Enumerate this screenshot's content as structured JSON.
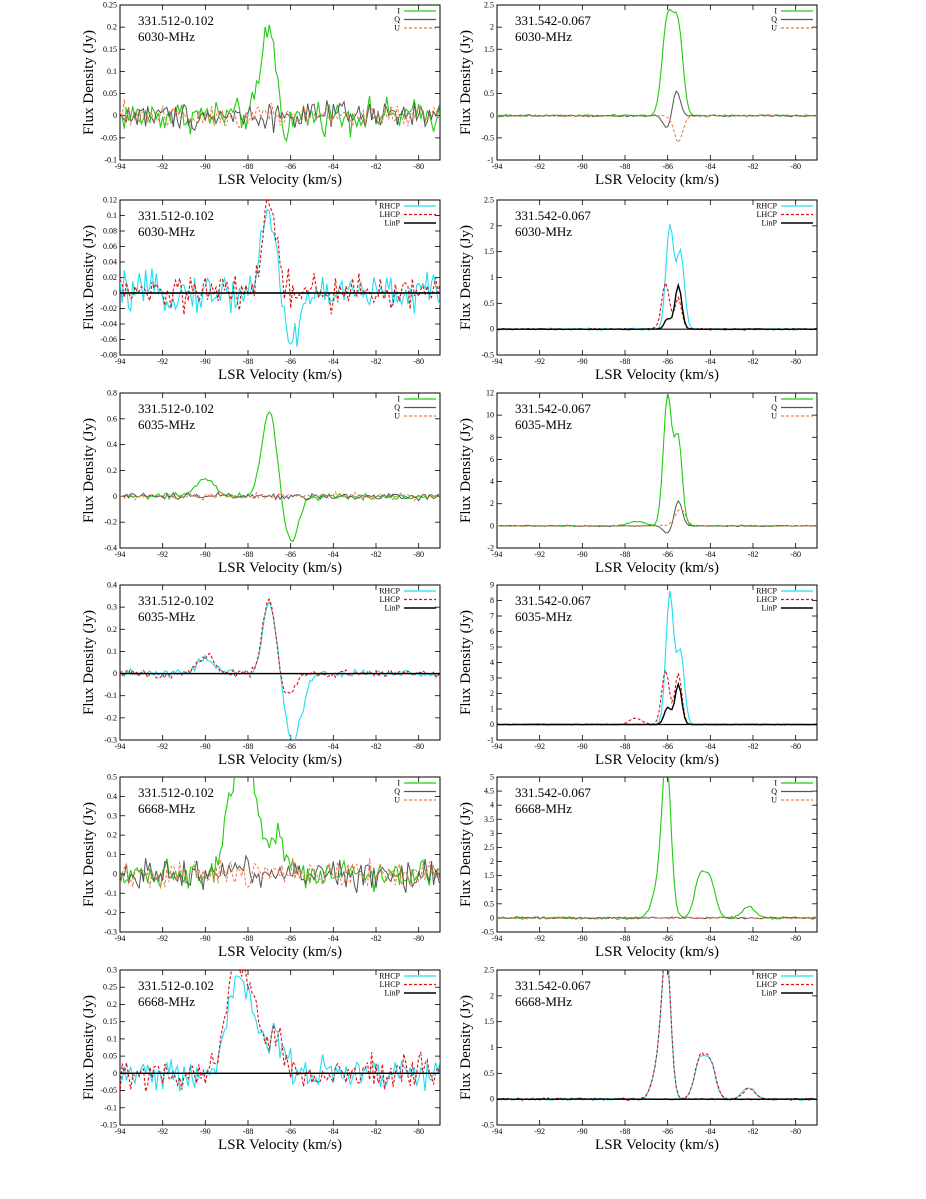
{
  "figure": {
    "xlabel": "LSR Velocity (km/s)",
    "ylabel": "Flux Density (Jy)"
  },
  "colors": {
    "I": "#22cc11",
    "Q": "#555555",
    "U": "#f07850",
    "RHCP": "#22ddee",
    "LHCP": "#dd1111",
    "LinP": "#000000"
  },
  "chart_data": [
    {
      "type": "line",
      "row": 0,
      "col": 0,
      "source": "331.512-0.102",
      "freq": "6030-MHz",
      "legend": [
        "I",
        "Q",
        "U"
      ],
      "xlim": [
        -94,
        -79
      ],
      "xticks": [
        -94,
        -92,
        -90,
        -88,
        -86,
        -84,
        -82,
        -80
      ],
      "ylim": [
        -0.1,
        0.25
      ],
      "yticks": [
        -0.1,
        -0.05,
        0,
        0.05,
        0.1,
        0.15,
        0.2,
        0.25
      ],
      "xlabel": "LSR Velocity (km/s)",
      "ylabel": "Flux Density (Jy)",
      "zero_line": false,
      "series": [
        {
          "name": "I",
          "kind": "I",
          "noise": 0.03,
          "peaks": [
            [
              -87.0,
              0.21,
              0.35
            ],
            [
              -86.4,
              -0.05,
              0.3
            ]
          ]
        },
        {
          "name": "Q",
          "kind": "Q",
          "noise": 0.025,
          "peaks": []
        },
        {
          "name": "U",
          "kind": "U",
          "noise": 0.025,
          "peaks": []
        }
      ]
    },
    {
      "type": "line",
      "row": 0,
      "col": 1,
      "source": "331.542-0.067",
      "freq": "6030-MHz",
      "legend": [
        "I",
        "Q",
        "U"
      ],
      "xlim": [
        -94,
        -79
      ],
      "xticks": [
        -94,
        -92,
        -90,
        -88,
        -86,
        -84,
        -82,
        -80
      ],
      "ylim": [
        -1,
        2.5
      ],
      "yticks": [
        -1,
        -0.5,
        0,
        0.5,
        1,
        1.5,
        2,
        2.5
      ],
      "xlabel": "LSR Velocity (km/s)",
      "ylabel": "Flux Density (Jy)",
      "zero_line": false,
      "series": [
        {
          "name": "I",
          "kind": "I",
          "noise": 0.02,
          "peaks": [
            [
              -86.0,
              2.2,
              0.25
            ],
            [
              -85.5,
              1.9,
              0.22
            ]
          ]
        },
        {
          "name": "Q",
          "kind": "Q",
          "noise": 0.015,
          "peaks": [
            [
              -86.0,
              -0.3,
              0.2
            ],
            [
              -85.6,
              0.6,
              0.18
            ]
          ]
        },
        {
          "name": "U",
          "kind": "U",
          "noise": 0.015,
          "peaks": [
            [
              -85.5,
              -0.6,
              0.2
            ]
          ]
        }
      ]
    },
    {
      "type": "line",
      "row": 1,
      "col": 0,
      "source": "331.512-0.102",
      "freq": "6030-MHz",
      "legend": [
        "RHCP",
        "LHCP",
        "LinP"
      ],
      "xlim": [
        -94,
        -79
      ],
      "xticks": [
        -94,
        -92,
        -90,
        -88,
        -86,
        -84,
        -82,
        -80
      ],
      "ylim": [
        -0.08,
        0.12
      ],
      "yticks": [
        -0.08,
        -0.06,
        -0.04,
        -0.02,
        0,
        0.02,
        0.04,
        0.06,
        0.08,
        0.1,
        0.12
      ],
      "xlabel": "LSR Velocity (km/s)",
      "ylabel": "Flux Density (Jy)",
      "zero_line": true,
      "series": [
        {
          "name": "RHCP",
          "kind": "RHCP",
          "noise": 0.02,
          "peaks": [
            [
              -87.0,
              0.1,
              0.4
            ],
            [
              -86.0,
              -0.07,
              0.35
            ]
          ]
        },
        {
          "name": "LHCP",
          "kind": "LHCP",
          "noise": 0.02,
          "peaks": [
            [
              -87.0,
              0.11,
              0.35
            ]
          ]
        },
        {
          "name": "LinP",
          "kind": "LinP",
          "noise": 0.0,
          "peaks": []
        }
      ]
    },
    {
      "type": "line",
      "row": 1,
      "col": 1,
      "source": "331.542-0.067",
      "freq": "6030-MHz",
      "legend": [
        "RHCP",
        "LHCP",
        "LinP"
      ],
      "xlim": [
        -94,
        -79
      ],
      "xticks": [
        -94,
        -92,
        -90,
        -88,
        -86,
        -84,
        -82,
        -80
      ],
      "ylim": [
        -0.5,
        2.5
      ],
      "yticks": [
        -0.5,
        0,
        0.5,
        1,
        1.5,
        2,
        2.5
      ],
      "xlabel": "LSR Velocity (km/s)",
      "ylabel": "Flux Density (Jy)",
      "zero_line": true,
      "series": [
        {
          "name": "RHCP",
          "kind": "RHCP",
          "noise": 0.015,
          "peaks": [
            [
              -85.9,
              2.0,
              0.18
            ],
            [
              -85.4,
              1.5,
              0.18
            ]
          ]
        },
        {
          "name": "LHCP",
          "kind": "LHCP",
          "noise": 0.015,
          "peaks": [
            [
              -86.1,
              0.9,
              0.18
            ],
            [
              -85.5,
              0.6,
              0.16
            ]
          ]
        },
        {
          "name": "LinP",
          "kind": "LinP",
          "noise": 0.005,
          "peaks": [
            [
              -86.0,
              0.2,
              0.15
            ],
            [
              -85.5,
              0.85,
              0.16
            ]
          ]
        }
      ]
    },
    {
      "type": "line",
      "row": 2,
      "col": 0,
      "source": "331.512-0.102",
      "freq": "6035-MHz",
      "legend": [
        "I",
        "Q",
        "U"
      ],
      "xlim": [
        -94,
        -79
      ],
      "xticks": [
        -94,
        -92,
        -90,
        -88,
        -86,
        -84,
        -82,
        -80
      ],
      "ylim": [
        -0.4,
        0.8
      ],
      "yticks": [
        -0.4,
        -0.2,
        0,
        0.2,
        0.4,
        0.6,
        0.8
      ],
      "xlabel": "LSR Velocity (km/s)",
      "ylabel": "Flux Density (Jy)",
      "zero_line": false,
      "series": [
        {
          "name": "I",
          "kind": "I",
          "noise": 0.02,
          "peaks": [
            [
              -87.0,
              0.67,
              0.35
            ],
            [
              -86.0,
              -0.36,
              0.35
            ],
            [
              -90.0,
              0.15,
              0.4
            ]
          ]
        },
        {
          "name": "Q",
          "kind": "Q",
          "noise": 0.02,
          "peaks": []
        },
        {
          "name": "U",
          "kind": "U",
          "noise": 0.02,
          "peaks": []
        }
      ]
    },
    {
      "type": "line",
      "row": 2,
      "col": 1,
      "source": "331.542-0.067",
      "freq": "6035-MHz",
      "legend": [
        "I",
        "Q",
        "U"
      ],
      "xlim": [
        -94,
        -79
      ],
      "xticks": [
        -94,
        -92,
        -90,
        -88,
        -86,
        -84,
        -82,
        -80
      ],
      "ylim": [
        -2,
        12
      ],
      "yticks": [
        -2,
        0,
        2,
        4,
        6,
        8,
        10,
        12
      ],
      "xlabel": "LSR Velocity (km/s)",
      "ylabel": "Flux Density (Jy)",
      "zero_line": false,
      "series": [
        {
          "name": "I",
          "kind": "I",
          "noise": 0.05,
          "peaks": [
            [
              -86.0,
              11.8,
              0.2
            ],
            [
              -85.5,
              7.8,
              0.18
            ],
            [
              -87.5,
              0.4,
              0.4
            ]
          ]
        },
        {
          "name": "Q",
          "kind": "Q",
          "noise": 0.04,
          "peaks": [
            [
              -86.0,
              -0.7,
              0.2
            ],
            [
              -85.5,
              2.3,
              0.18
            ]
          ]
        },
        {
          "name": "U",
          "kind": "U",
          "noise": 0.04,
          "peaks": [
            [
              -85.4,
              1.5,
              0.25
            ]
          ]
        }
      ]
    },
    {
      "type": "line",
      "row": 3,
      "col": 0,
      "source": "331.512-0.102",
      "freq": "6035-MHz",
      "legend": [
        "RHCP",
        "LHCP",
        "LinP"
      ],
      "xlim": [
        -94,
        -79
      ],
      "xticks": [
        -94,
        -92,
        -90,
        -88,
        -86,
        -84,
        -82,
        -80
      ],
      "ylim": [
        -0.3,
        0.4
      ],
      "yticks": [
        -0.3,
        -0.2,
        -0.1,
        0,
        0.1,
        0.2,
        0.3,
        0.4
      ],
      "xlabel": "LSR Velocity (km/s)",
      "ylabel": "Flux Density (Jy)",
      "zero_line": true,
      "series": [
        {
          "name": "RHCP",
          "kind": "RHCP",
          "noise": 0.015,
          "peaks": [
            [
              -87.0,
              0.33,
              0.3
            ],
            [
              -86.0,
              -0.27,
              0.3
            ],
            [
              -85.5,
              -0.12,
              0.3
            ],
            [
              -90.0,
              0.07,
              0.4
            ]
          ]
        },
        {
          "name": "LHCP",
          "kind": "LHCP",
          "noise": 0.015,
          "peaks": [
            [
              -87.0,
              0.35,
              0.3
            ],
            [
              -86.2,
              -0.1,
              0.35
            ],
            [
              -90.0,
              0.08,
              0.4
            ]
          ]
        },
        {
          "name": "LinP",
          "kind": "LinP",
          "noise": 0.0,
          "peaks": []
        }
      ]
    },
    {
      "type": "line",
      "row": 3,
      "col": 1,
      "source": "331.542-0.067",
      "freq": "6035-MHz",
      "legend": [
        "RHCP",
        "LHCP",
        "LinP"
      ],
      "xlim": [
        -94,
        -79
      ],
      "xticks": [
        -94,
        -92,
        -90,
        -88,
        -86,
        -84,
        -82,
        -80
      ],
      "ylim": [
        -1,
        9
      ],
      "yticks": [
        -1,
        0,
        1,
        2,
        3,
        4,
        5,
        6,
        7,
        8,
        9
      ],
      "xlabel": "LSR Velocity (km/s)",
      "ylabel": "Flux Density (Jy)",
      "zero_line": true,
      "series": [
        {
          "name": "RHCP",
          "kind": "RHCP",
          "noise": 0.03,
          "peaks": [
            [
              -85.9,
              8.5,
              0.18
            ],
            [
              -85.4,
              4.7,
              0.18
            ]
          ]
        },
        {
          "name": "LHCP",
          "kind": "LHCP",
          "noise": 0.03,
          "peaks": [
            [
              -86.1,
              3.5,
              0.18
            ],
            [
              -85.5,
              3.3,
              0.16
            ],
            [
              -87.5,
              0.4,
              0.3
            ]
          ]
        },
        {
          "name": "LinP",
          "kind": "LinP",
          "noise": 0.01,
          "peaks": [
            [
              -86.0,
              1.1,
              0.16
            ],
            [
              -85.5,
              2.6,
              0.16
            ]
          ]
        }
      ]
    },
    {
      "type": "line",
      "row": 4,
      "col": 0,
      "source": "331.512-0.102",
      "freq": "6668-MHz",
      "legend": [
        "I",
        "Q",
        "U"
      ],
      "xlim": [
        -94,
        -79
      ],
      "xticks": [
        -94,
        -92,
        -90,
        -88,
        -86,
        -84,
        -82,
        -80
      ],
      "ylim": [
        -0.3,
        0.5
      ],
      "yticks": [
        -0.3,
        -0.2,
        -0.1,
        0,
        0.1,
        0.2,
        0.3,
        0.4,
        0.5
      ],
      "xlabel": "LSR Velocity (km/s)",
      "ylabel": "Flux Density (Jy)",
      "zero_line": false,
      "series": [
        {
          "name": "I",
          "kind": "I",
          "noise": 0.06,
          "peaks": [
            [
              -88.6,
              0.45,
              0.45
            ],
            [
              -87.9,
              0.45,
              0.4
            ],
            [
              -86.7,
              0.22,
              0.4
            ]
          ]
        },
        {
          "name": "Q",
          "kind": "Q",
          "noise": 0.07,
          "peaks": []
        },
        {
          "name": "U",
          "kind": "U",
          "noise": 0.06,
          "peaks": []
        }
      ]
    },
    {
      "type": "line",
      "row": 4,
      "col": 1,
      "source": "331.542-0.067",
      "freq": "6668-MHz",
      "legend": [
        "I",
        "Q",
        "U"
      ],
      "xlim": [
        -94,
        -79
      ],
      "xticks": [
        -94,
        -92,
        -90,
        -88,
        -86,
        -84,
        -82,
        -80
      ],
      "ylim": [
        -0.5,
        5
      ],
      "yticks": [
        -0.5,
        0,
        0.5,
        1,
        1.5,
        2,
        2.5,
        3,
        3.5,
        4,
        4.5,
        5
      ],
      "xlabel": "LSR Velocity (km/s)",
      "ylabel": "Flux Density (Jy)",
      "zero_line": false,
      "series": [
        {
          "name": "I",
          "kind": "I",
          "noise": 0.04,
          "peaks": [
            [
              -86.05,
              4.7,
              0.2
            ],
            [
              -86.3,
              1.4,
              0.35
            ],
            [
              -84.5,
              1.4,
              0.25
            ],
            [
              -84.0,
              1.3,
              0.25
            ],
            [
              -82.2,
              0.4,
              0.3
            ]
          ]
        },
        {
          "name": "Q",
          "kind": "Q",
          "noise": 0.03,
          "peaks": []
        },
        {
          "name": "U",
          "kind": "U",
          "noise": 0.03,
          "peaks": []
        }
      ]
    },
    {
      "type": "line",
      "row": 5,
      "col": 0,
      "source": "331.512-0.102",
      "freq": "6668-MHz",
      "legend": [
        "RHCP",
        "LHCP",
        "LinP"
      ],
      "xlim": [
        -94,
        -79
      ],
      "xticks": [
        -94,
        -92,
        -90,
        -88,
        -86,
        -84,
        -82,
        -80
      ],
      "ylim": [
        -0.15,
        0.3
      ],
      "yticks": [
        -0.15,
        -0.1,
        -0.05,
        0,
        0.05,
        0.1,
        0.15,
        0.2,
        0.25,
        0.3
      ],
      "xlabel": "LSR Velocity (km/s)",
      "ylabel": "Flux Density (Jy)",
      "zero_line": true,
      "series": [
        {
          "name": "RHCP",
          "kind": "RHCP",
          "noise": 0.04,
          "peaks": [
            [
              -88.7,
              0.22,
              0.4
            ],
            [
              -87.9,
              0.2,
              0.4
            ],
            [
              -86.7,
              0.1,
              0.4
            ]
          ]
        },
        {
          "name": "LHCP",
          "kind": "LHCP",
          "noise": 0.04,
          "peaks": [
            [
              -88.7,
              0.25,
              0.4
            ],
            [
              -87.9,
              0.22,
              0.4
            ],
            [
              -86.7,
              0.12,
              0.4
            ]
          ]
        },
        {
          "name": "LinP",
          "kind": "LinP",
          "noise": 0.0,
          "peaks": []
        }
      ]
    },
    {
      "type": "line",
      "row": 5,
      "col": 1,
      "source": "331.542-0.067",
      "freq": "6668-MHz",
      "legend": [
        "RHCP",
        "LHCP",
        "LinP"
      ],
      "xlim": [
        -94,
        -79
      ],
      "xticks": [
        -94,
        -92,
        -90,
        -88,
        -86,
        -84,
        -82,
        -80
      ],
      "ylim": [
        -0.5,
        2.5
      ],
      "yticks": [
        -0.5,
        0,
        0.5,
        1,
        1.5,
        2,
        2.5
      ],
      "xlabel": "LSR Velocity (km/s)",
      "ylabel": "Flux Density (Jy)",
      "zero_line": true,
      "series": [
        {
          "name": "RHCP",
          "kind": "RHCP",
          "noise": 0.02,
          "peaks": [
            [
              -86.05,
              2.4,
              0.2
            ],
            [
              -86.35,
              0.8,
              0.3
            ],
            [
              -84.5,
              0.72,
              0.25
            ],
            [
              -84.0,
              0.68,
              0.25
            ],
            [
              -82.2,
              0.22,
              0.3
            ]
          ]
        },
        {
          "name": "LHCP",
          "kind": "LHCP",
          "noise": 0.02,
          "peaks": [
            [
              -86.05,
              2.45,
              0.2
            ],
            [
              -86.35,
              0.8,
              0.3
            ],
            [
              -84.5,
              0.75,
              0.25
            ],
            [
              -84.0,
              0.7,
              0.25
            ],
            [
              -82.2,
              0.2,
              0.3
            ]
          ]
        },
        {
          "name": "LinP",
          "kind": "LinP",
          "noise": 0.005,
          "peaks": []
        }
      ]
    }
  ]
}
